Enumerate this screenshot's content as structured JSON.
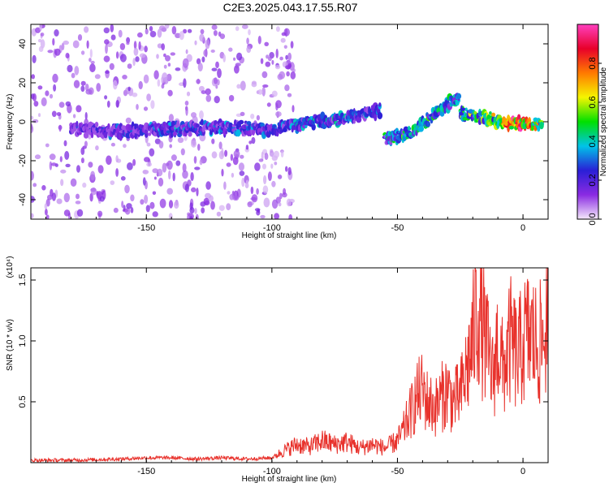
{
  "title": "C2E3.2025.043.17.55.R07",
  "chart_data": [
    {
      "type": "heatmap",
      "title": "C2E3.2025.043.17.55.R07",
      "xlabel": "Height of straight line (km)",
      "ylabel": "Frequency (Hz)",
      "xlim": [
        -196,
        10
      ],
      "ylim": [
        -50,
        50
      ],
      "xticks": [
        -150,
        -100,
        -50,
        0
      ],
      "yticks": [
        -40,
        -20,
        0,
        20,
        40
      ],
      "colorbar": {
        "label": "Normalized spectral amplitude",
        "ticks": [
          "0.0",
          "0.2",
          "0.4",
          "0.6",
          "0.8"
        ],
        "range": [
          0,
          1
        ],
        "colors": [
          "#f4e8fb",
          "#8a2be2",
          "#2a1fd6",
          "#00c4e8",
          "#00e000",
          "#f5f500",
          "#ff7a00",
          "#e8002a",
          "#ff40c0"
        ]
      },
      "ridge": [
        {
          "x": -180,
          "freq": -4,
          "amp": 0.25
        },
        {
          "x": -160,
          "freq": -5,
          "amp": 0.3
        },
        {
          "x": -140,
          "freq": -4,
          "amp": 0.35
        },
        {
          "x": -120,
          "freq": -3,
          "amp": 0.35
        },
        {
          "x": -100,
          "freq": -4,
          "amp": 0.35
        },
        {
          "x": -85,
          "freq": 0,
          "amp": 0.4
        },
        {
          "x": -70,
          "freq": 2,
          "amp": 0.4
        },
        {
          "x": -57,
          "freq": 6,
          "amp": 0.35
        },
        {
          "x": -55,
          "freq": -9,
          "amp": 0.45
        },
        {
          "x": -45,
          "freq": -6,
          "amp": 0.5
        },
        {
          "x": -35,
          "freq": 4,
          "amp": 0.5
        },
        {
          "x": -25,
          "freq": 14,
          "amp": 0.45
        },
        {
          "x": -25,
          "freq": 4,
          "amp": 0.55
        },
        {
          "x": -15,
          "freq": 2,
          "amp": 0.6
        },
        {
          "x": -5,
          "freq": -1,
          "amp": 0.9
        },
        {
          "x": 3,
          "freq": -1,
          "amp": 0.95
        },
        {
          "x": 8,
          "freq": -1,
          "amp": 0.5
        }
      ]
    },
    {
      "type": "line",
      "xlabel": "Height of straight line (km)",
      "ylabel": "SNR (10 * v/v)",
      "y_scale_note": "(x10⁴)",
      "xlim": [
        -196,
        10
      ],
      "ylim": [
        0,
        1.6
      ],
      "xticks": [
        -150,
        -100,
        -50,
        0
      ],
      "yticks": [
        0.5,
        1.0,
        1.5
      ],
      "color": "#e8322c",
      "series": [
        {
          "x": [
            -196,
            -180,
            -160,
            -150,
            -140,
            -130,
            -120,
            -110,
            -100,
            -95,
            -90,
            -85,
            -80,
            -75,
            -70,
            -65,
            -60,
            -55,
            -50,
            -48,
            -45,
            -42,
            -40,
            -38,
            -35,
            -32,
            -30,
            -28,
            -25,
            -22,
            -20,
            -18,
            -15,
            -12,
            -10,
            -8,
            -5,
            -2,
            0,
            3,
            6,
            8,
            10
          ],
          "y": [
            0.02,
            0.02,
            0.03,
            0.04,
            0.04,
            0.03,
            0.04,
            0.03,
            0.04,
            0.1,
            0.15,
            0.13,
            0.18,
            0.15,
            0.17,
            0.12,
            0.15,
            0.12,
            0.18,
            0.25,
            0.4,
            0.55,
            0.6,
            0.5,
            0.45,
            0.55,
            0.6,
            0.5,
            0.55,
            0.8,
            1.0,
            1.3,
            1.0,
            0.7,
            1.0,
            0.75,
            1.0,
            0.85,
            1.0,
            1.05,
            0.95,
            1.0,
            1.25
          ]
        }
      ]
    }
  ]
}
